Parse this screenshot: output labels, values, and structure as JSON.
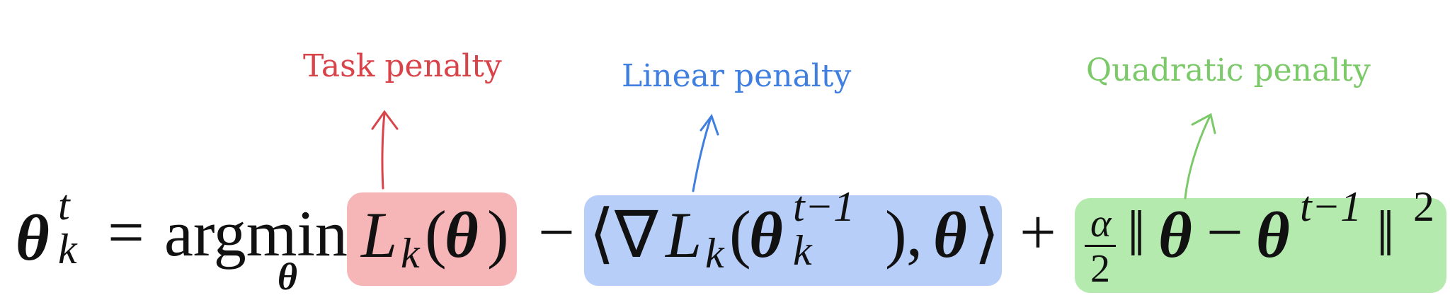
{
  "annotations": {
    "task": {
      "label": "Task penalty",
      "color": "#d9434a"
    },
    "linear": {
      "label": "Linear penalty",
      "color": "#3f7fe0"
    },
    "quadratic": {
      "label": "Quadratic penalty",
      "color": "#7cc96a"
    }
  },
  "highlights": {
    "task": "#f4a9ab",
    "linear": "#a9c6f7",
    "quadratic": "#a8e6a0"
  },
  "equation": {
    "lhs_symbol": "θ",
    "lhs_sup": "t",
    "lhs_sub": "k",
    "equals": "=",
    "argmin": "argmin",
    "argmin_sub": "θ",
    "task_term": {
      "L": "L",
      "sub": "k",
      "open": "(",
      "theta": "θ",
      "close": ")"
    },
    "minus1": "−",
    "linear_term": {
      "langle": "⟨",
      "nabla": "∇",
      "L": "L",
      "sub": "k",
      "open": "(",
      "theta": "θ",
      "sup": "t−1",
      "theta_sub": "k",
      "close": ")",
      "comma": ",",
      "theta2": "θ",
      "rangle": "⟩"
    },
    "plus": "+",
    "quadratic_term": {
      "frac_num": "α",
      "frac_den": "2",
      "norm_open": "‖",
      "theta": "θ",
      "minus": "−",
      "theta2": "θ",
      "sup": "t−1",
      "norm_close": "‖",
      "power": "2"
    }
  }
}
